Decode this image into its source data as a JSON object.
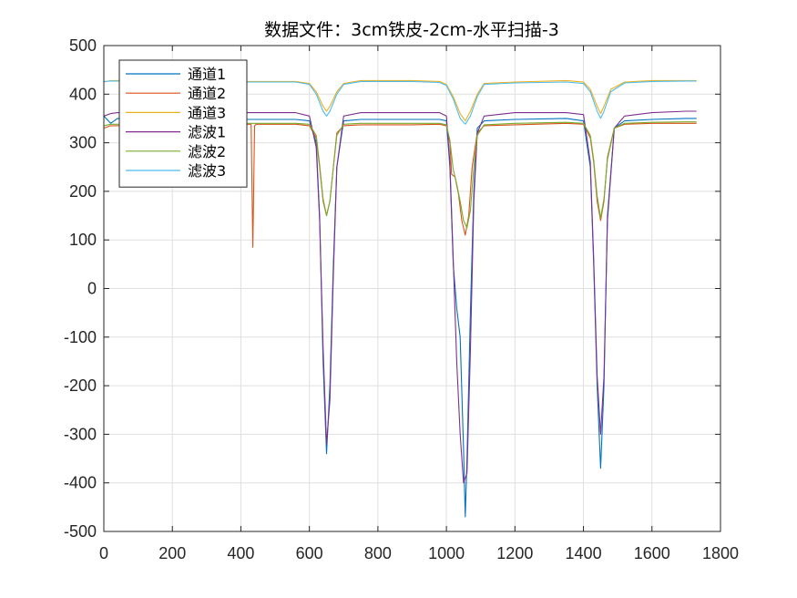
{
  "chart_data": {
    "type": "line",
    "title": "数据文件：3cm铁皮-2cm-水平扫描-3",
    "xlabel": "",
    "ylabel": "",
    "xlim": [
      0,
      1800
    ],
    "ylim": [
      -500,
      500
    ],
    "xticks": [
      0,
      200,
      400,
      600,
      800,
      1000,
      1200,
      1400,
      1600,
      1800
    ],
    "yticks": [
      500,
      400,
      300,
      200,
      100,
      0,
      -100,
      -200,
      -300,
      -400,
      -500
    ],
    "grid": true,
    "legend_position": "top-left",
    "series": [
      {
        "name": "通道1",
        "color": "#0072BD",
        "x": [
          0,
          20,
          40,
          100,
          300,
          560,
          600,
          620,
          630,
          640,
          650,
          660,
          670,
          680,
          700,
          750,
          900,
          980,
          1000,
          1010,
          1020,
          1030,
          1040,
          1050,
          1055,
          1060,
          1070,
          1080,
          1090,
          1110,
          1200,
          1350,
          1400,
          1420,
          1430,
          1440,
          1450,
          1460,
          1470,
          1490,
          1520,
          1600,
          1700,
          1730
        ],
        "y": [
          355,
          340,
          350,
          348,
          348,
          348,
          345,
          300,
          150,
          -150,
          -340,
          -200,
          50,
          250,
          345,
          348,
          348,
          348,
          345,
          250,
          50,
          -40,
          -100,
          -330,
          -470,
          -350,
          -50,
          200,
          330,
          345,
          348,
          350,
          345,
          250,
          50,
          -200,
          -370,
          -200,
          150,
          330,
          345,
          348,
          350,
          350
        ]
      },
      {
        "name": "通道2",
        "color": "#D95319",
        "x": [
          0,
          20,
          100,
          300,
          430,
          435,
          440,
          445,
          560,
          600,
          620,
          630,
          640,
          650,
          660,
          670,
          680,
          700,
          750,
          900,
          980,
          1000,
          1010,
          1015,
          1025,
          1035,
          1045,
          1055,
          1065,
          1075,
          1090,
          1110,
          1200,
          1350,
          1400,
          1420,
          1430,
          1440,
          1450,
          1460,
          1470,
          1490,
          1520,
          1600,
          1700,
          1730
        ],
        "y": [
          330,
          335,
          335,
          338,
          338,
          85,
          335,
          338,
          338,
          335,
          310,
          250,
          180,
          150,
          180,
          250,
          320,
          335,
          337,
          337,
          338,
          335,
          300,
          235,
          230,
          195,
          140,
          110,
          150,
          250,
          320,
          335,
          337,
          340,
          338,
          310,
          260,
          180,
          140,
          180,
          270,
          330,
          338,
          340,
          340,
          340
        ]
      },
      {
        "name": "通道3",
        "color": "#EDB120",
        "x": [
          0,
          20,
          100,
          300,
          560,
          600,
          620,
          640,
          650,
          660,
          680,
          700,
          750,
          900,
          980,
          1000,
          1020,
          1040,
          1055,
          1070,
          1090,
          1110,
          1200,
          1350,
          1400,
          1420,
          1440,
          1450,
          1460,
          1480,
          1520,
          1600,
          1700,
          1730
        ],
        "y": [
          425,
          428,
          428,
          426,
          426,
          422,
          405,
          375,
          365,
          375,
          405,
          422,
          428,
          428,
          426,
          420,
          395,
          360,
          345,
          365,
          400,
          422,
          425,
          428,
          425,
          410,
          375,
          360,
          375,
          410,
          425,
          428,
          428,
          428
        ]
      },
      {
        "name": "滤波1",
        "color": "#7E2F8E",
        "x": [
          0,
          20,
          40,
          100,
          300,
          560,
          600,
          620,
          630,
          640,
          650,
          660,
          670,
          680,
          700,
          750,
          900,
          980,
          1000,
          1010,
          1020,
          1030,
          1040,
          1050,
          1060,
          1070,
          1080,
          1090,
          1110,
          1200,
          1350,
          1400,
          1420,
          1430,
          1440,
          1450,
          1460,
          1470,
          1490,
          1520,
          1600,
          1700,
          1730
        ],
        "y": [
          355,
          360,
          362,
          362,
          362,
          362,
          355,
          290,
          140,
          -120,
          -320,
          -230,
          30,
          250,
          355,
          362,
          362,
          362,
          355,
          260,
          60,
          -150,
          -300,
          -400,
          -380,
          -130,
          180,
          320,
          355,
          362,
          362,
          358,
          260,
          60,
          -180,
          -300,
          -180,
          140,
          330,
          355,
          362,
          365,
          365
        ]
      },
      {
        "name": "滤波2",
        "color": "#77AC30",
        "x": [
          0,
          20,
          100,
          300,
          560,
          600,
          620,
          630,
          640,
          650,
          660,
          670,
          680,
          700,
          750,
          900,
          980,
          1000,
          1010,
          1020,
          1030,
          1040,
          1050,
          1060,
          1070,
          1080,
          1090,
          1110,
          1200,
          1350,
          1400,
          1420,
          1430,
          1440,
          1450,
          1460,
          1470,
          1490,
          1520,
          1600,
          1700,
          1730
        ],
        "y": [
          335,
          338,
          338,
          340,
          340,
          338,
          315,
          255,
          185,
          150,
          180,
          250,
          315,
          338,
          340,
          340,
          340,
          337,
          305,
          245,
          215,
          180,
          140,
          125,
          160,
          250,
          315,
          337,
          340,
          342,
          340,
          315,
          265,
          190,
          145,
          185,
          265,
          330,
          340,
          342,
          343,
          343
        ]
      },
      {
        "name": "滤波3",
        "color": "#4DBEEE",
        "x": [
          0,
          20,
          100,
          300,
          560,
          600,
          620,
          640,
          650,
          660,
          680,
          700,
          750,
          900,
          980,
          1000,
          1020,
          1040,
          1055,
          1070,
          1090,
          1110,
          1200,
          1350,
          1400,
          1420,
          1440,
          1450,
          1460,
          1480,
          1520,
          1600,
          1700,
          1730
        ],
        "y": [
          426,
          427,
          427,
          425,
          425,
          420,
          400,
          365,
          355,
          365,
          400,
          420,
          426,
          426,
          424,
          418,
          390,
          350,
          338,
          355,
          395,
          420,
          423,
          425,
          422,
          405,
          365,
          350,
          365,
          405,
          423,
          426,
          427,
          427
        ]
      }
    ]
  }
}
